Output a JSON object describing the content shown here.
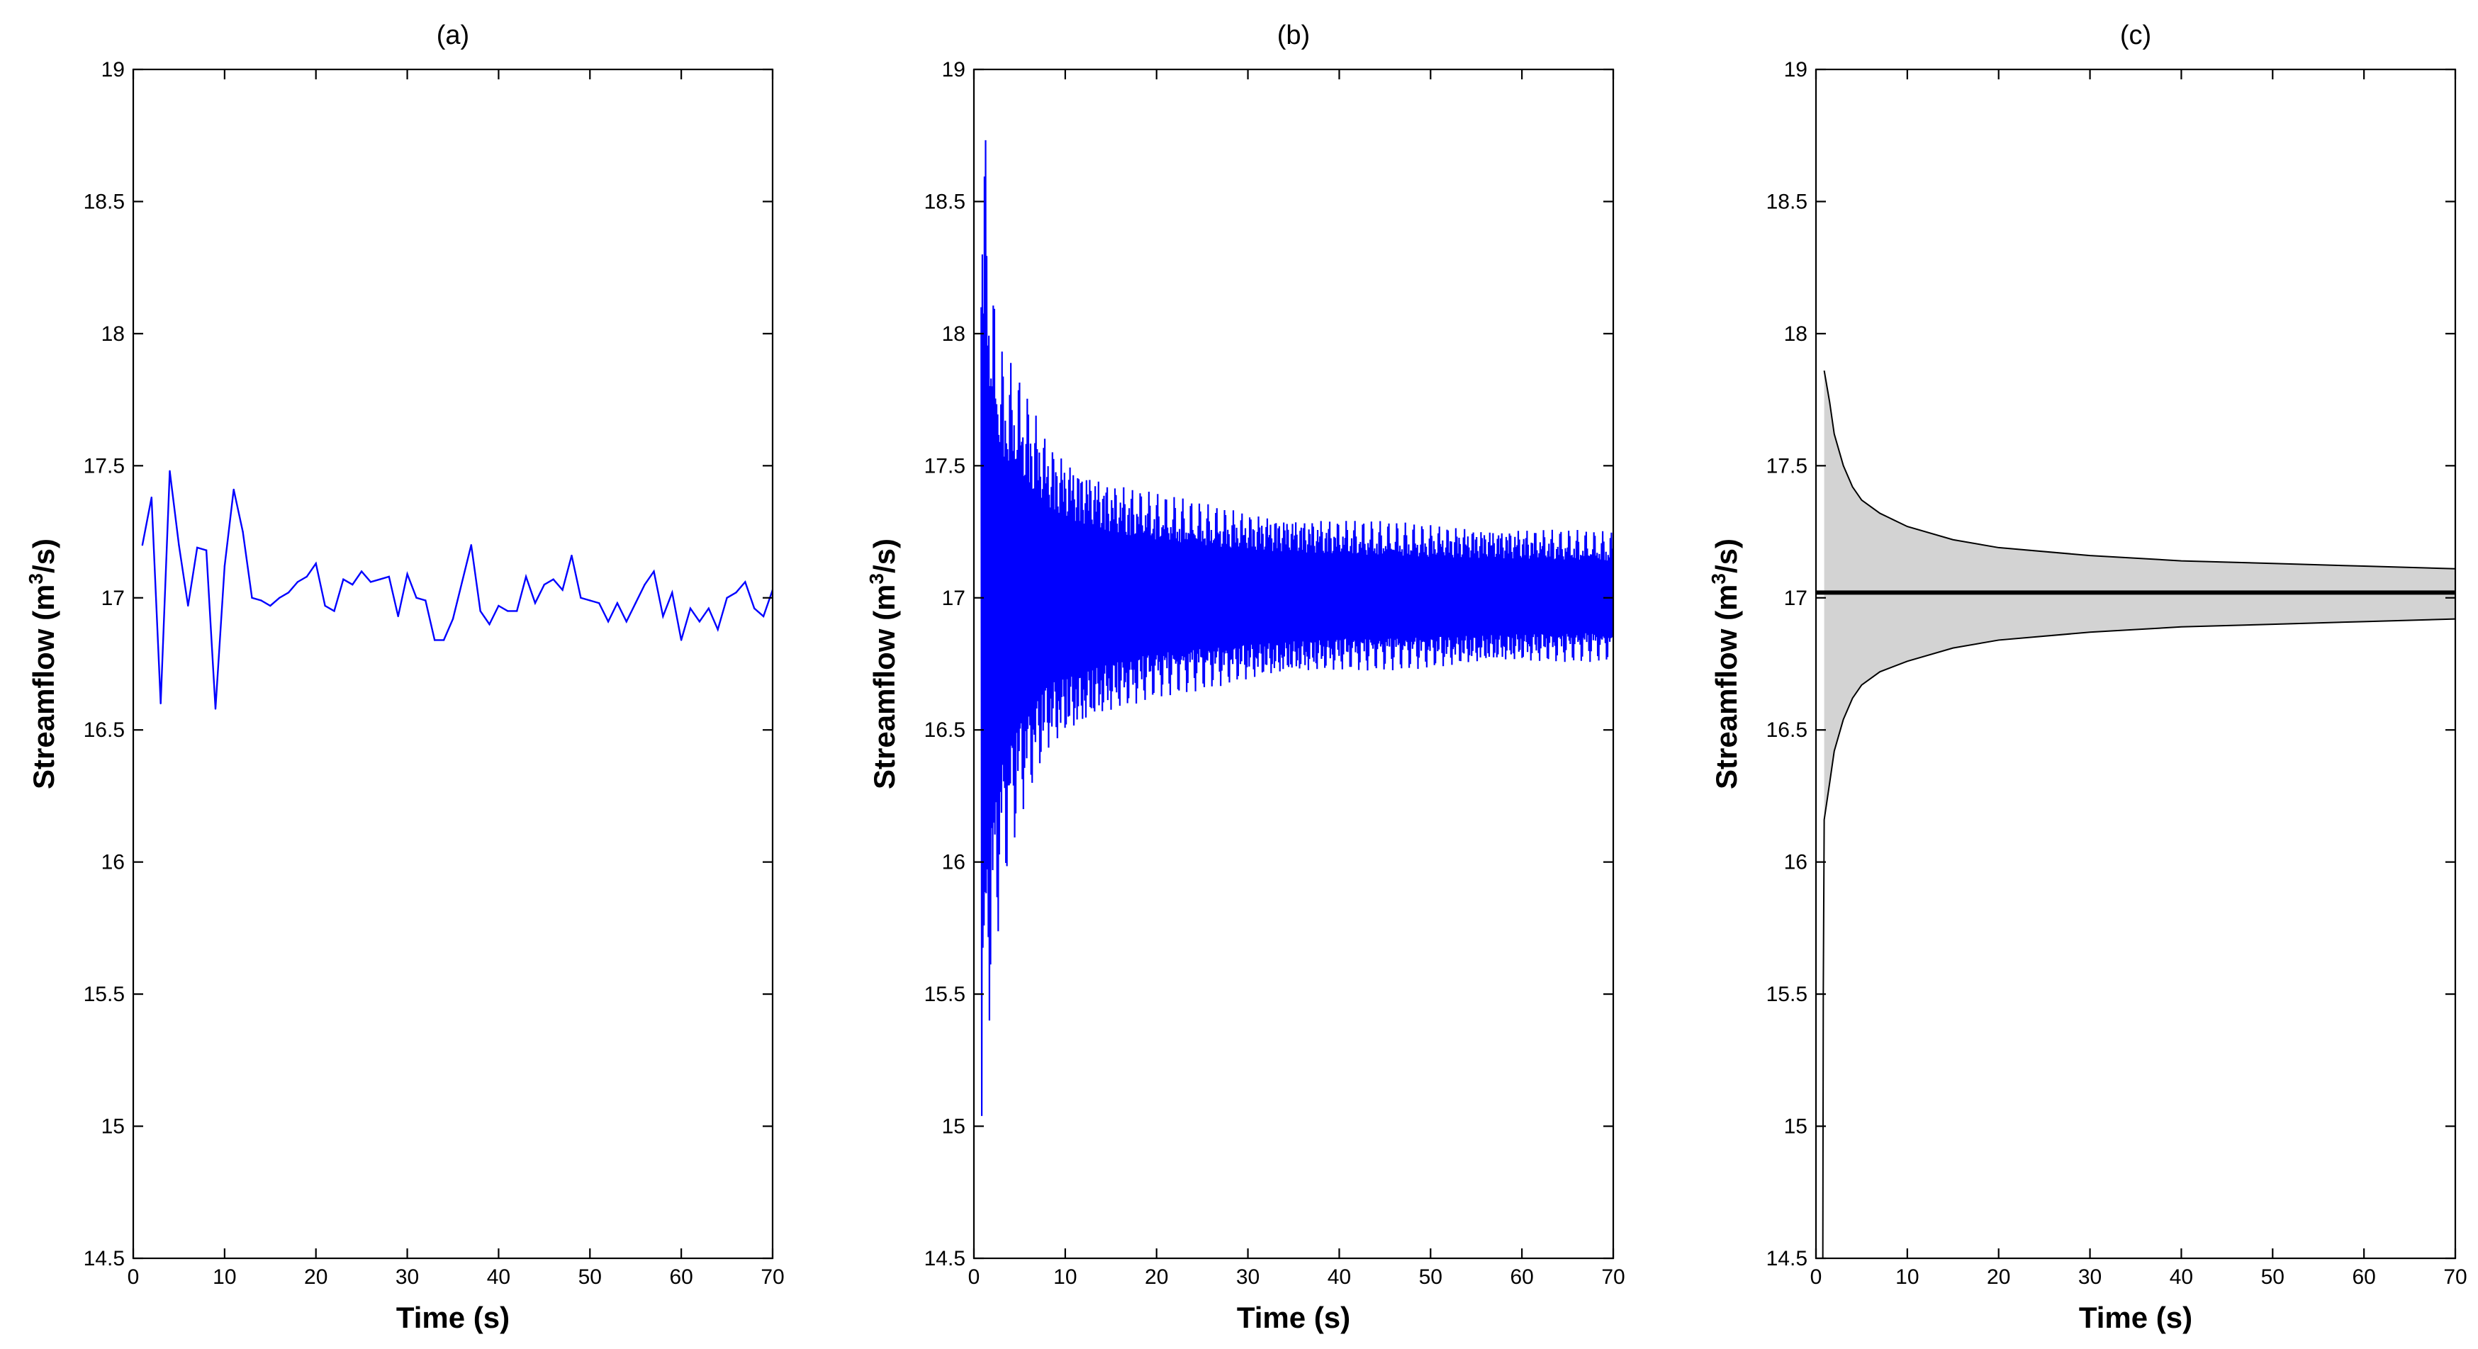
{
  "chart_data": [
    {
      "type": "line",
      "title": "(a)",
      "xlabel": "Time (s)",
      "ylabel": {
        "prefix": "Streamflow (m",
        "sup": "3",
        "suffix": "/s)"
      },
      "xlim": [
        0,
        70
      ],
      "ylim": [
        14.5,
        19
      ],
      "xticks": [
        "0",
        "10",
        "20",
        "30",
        "40",
        "50",
        "60",
        "70"
      ],
      "yticks": [
        "14.5",
        "15",
        "15.5",
        "16",
        "16.5",
        "17",
        "17.5",
        "18",
        "18.5",
        "19"
      ],
      "grid": false,
      "series": [
        {
          "color": "#0000ff",
          "x": [
            1,
            2,
            3,
            4,
            5,
            6,
            7,
            8,
            9,
            10,
            11,
            12,
            13,
            14,
            15,
            16,
            17,
            18,
            19,
            20,
            21,
            22,
            23,
            24,
            25,
            26,
            27,
            28,
            29,
            30,
            31,
            32,
            33,
            34,
            35,
            36,
            37,
            38,
            39,
            40,
            41,
            42,
            43,
            44,
            45,
            46,
            47,
            48,
            49,
            50,
            51,
            52,
            53,
            54,
            55,
            56,
            57,
            58,
            59,
            60,
            61,
            62,
            63,
            64,
            65,
            66,
            67,
            68,
            69,
            70
          ],
          "y": [
            17.2,
            17.38,
            16.6,
            17.48,
            17.2,
            16.97,
            17.19,
            17.18,
            16.58,
            17.12,
            17.41,
            17.25,
            17.0,
            16.99,
            16.97,
            17.0,
            17.02,
            17.06,
            17.08,
            17.13,
            16.97,
            16.95,
            17.07,
            17.05,
            17.1,
            17.06,
            17.07,
            17.08,
            16.93,
            17.09,
            17.0,
            16.99,
            16.84,
            16.84,
            16.92,
            17.06,
            17.2,
            16.95,
            16.9,
            16.97,
            16.95,
            16.95,
            17.08,
            16.98,
            17.05,
            17.07,
            17.03,
            17.16,
            17.0,
            16.99,
            16.98,
            16.91,
            16.98,
            16.91,
            16.98,
            17.05,
            17.1,
            16.93,
            17.02,
            16.84,
            16.96,
            16.91,
            16.96,
            16.88,
            17.0,
            17.02,
            17.06,
            16.96,
            16.93,
            17.03
          ]
        }
      ]
    },
    {
      "type": "line",
      "title": "(b)",
      "xlabel": "Time (s)",
      "ylabel": {
        "prefix": "Streamflow (m",
        "sup": "3",
        "suffix": "/s)"
      },
      "xlim": [
        0,
        70
      ],
      "ylim": [
        14.5,
        19
      ],
      "xticks": [
        "0",
        "10",
        "20",
        "30",
        "40",
        "50",
        "60",
        "70"
      ],
      "yticks": [
        "14.5",
        "15",
        "15.5",
        "16",
        "16.5",
        "17",
        "17.5",
        "18",
        "18.5",
        "19"
      ],
      "grid": false,
      "series": [
        {
          "color": "#0000ff",
          "x_start": 0.8,
          "x_end": 70,
          "step": 0.06,
          "center": 17.0,
          "upper_envelope": {
            "x": [
              0.8,
              1.2,
              2,
              3,
              5,
              8,
              10,
              15,
              20,
              25,
              30,
              40,
              50,
              60,
              70
            ],
            "y": [
              19.0,
              18.8,
              18.2,
              17.95,
              17.85,
              17.62,
              17.55,
              17.45,
              17.4,
              17.36,
              17.33,
              17.3,
              17.28,
              17.27,
              17.25
            ]
          },
          "lower_envelope": {
            "x": [
              0.8,
              1.2,
              2,
              3,
              5,
              8,
              10,
              15,
              20,
              25,
              30,
              40,
              50,
              60,
              70
            ],
            "y": [
              14.9,
              15.2,
              15.5,
              15.85,
              16.15,
              16.4,
              16.45,
              16.55,
              16.62,
              16.65,
              16.68,
              16.72,
              16.73,
              16.75,
              16.76
            ]
          }
        }
      ]
    },
    {
      "type": "area",
      "title": "(c)",
      "xlabel": "Time (s)",
      "ylabel": {
        "prefix": "Streamflow (m",
        "sup": "3",
        "suffix": "/s)"
      },
      "xlim": [
        0,
        70
      ],
      "ylim": [
        14.5,
        19
      ],
      "xticks": [
        "0",
        "10",
        "20",
        "30",
        "40",
        "50",
        "60",
        "70"
      ],
      "yticks": [
        "14.5",
        "15",
        "15.5",
        "16",
        "16.5",
        "17",
        "17.5",
        "18",
        "18.5",
        "19"
      ],
      "grid": false,
      "mean": {
        "value": 17.02,
        "color": "#000000"
      },
      "band": {
        "fill": "#d3d3d3",
        "x": [
          0.9,
          1.5,
          2,
          3,
          4,
          5,
          7,
          10,
          15,
          20,
          30,
          40,
          50,
          60,
          70
        ],
        "upper": [
          17.86,
          17.74,
          17.62,
          17.5,
          17.42,
          17.37,
          17.32,
          17.27,
          17.22,
          17.19,
          17.16,
          17.14,
          17.13,
          17.12,
          17.11
        ],
        "lower": [
          16.16,
          16.3,
          16.42,
          16.54,
          16.62,
          16.67,
          16.72,
          16.76,
          16.81,
          16.84,
          16.87,
          16.89,
          16.9,
          16.91,
          16.92
        ]
      },
      "lower_tail": {
        "x": [
          0.75,
          0.8,
          0.9
        ],
        "y": [
          14.5,
          15.5,
          16.16
        ]
      }
    }
  ]
}
